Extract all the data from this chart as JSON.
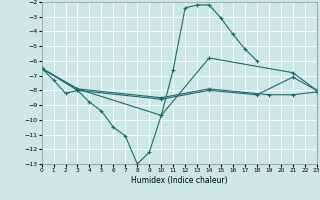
{
  "xlabel": "Humidex (Indice chaleur)",
  "xlim": [
    0,
    23
  ],
  "ylim": [
    -13,
    -2
  ],
  "yticks": [
    -13,
    -12,
    -11,
    -10,
    -9,
    -8,
    -7,
    -6,
    -5,
    -4,
    -3,
    -2
  ],
  "xticks": [
    0,
    1,
    2,
    3,
    4,
    5,
    6,
    7,
    8,
    9,
    10,
    11,
    12,
    13,
    14,
    15,
    16,
    17,
    18,
    19,
    20,
    21,
    22,
    23
  ],
  "bg_color": "#cde8e4",
  "line_color": "#1a6b6b",
  "grid_color": "#ffffff",
  "curve1_x": [
    0,
    1,
    2,
    3,
    4,
    5,
    6,
    7,
    8,
    9,
    10,
    11,
    12,
    13,
    14,
    15,
    16,
    17,
    18
  ],
  "curve1_y": [
    -6.5,
    -7.3,
    -8.2,
    -8.0,
    -8.8,
    -9.4,
    -10.5,
    -11.1,
    -13.0,
    -12.2,
    -9.7,
    -6.6,
    -2.4,
    -2.2,
    -2.2,
    -3.1,
    -4.2,
    -5.2,
    -6.0
  ],
  "curve2_x": [
    0,
    3,
    10,
    14,
    19,
    21,
    23
  ],
  "curve2_y": [
    -6.5,
    -7.9,
    -8.5,
    -7.9,
    -8.3,
    -8.3,
    -8.1
  ],
  "curve3_x": [
    0,
    3,
    10,
    14,
    18,
    21,
    23
  ],
  "curve3_y": [
    -6.5,
    -8.0,
    -8.6,
    -8.0,
    -8.3,
    -7.1,
    -8.0
  ],
  "curve4_x": [
    0,
    3,
    10,
    14,
    21,
    23
  ],
  "curve4_y": [
    -6.5,
    -7.9,
    -9.7,
    -5.8,
    -6.8,
    -8.0
  ]
}
